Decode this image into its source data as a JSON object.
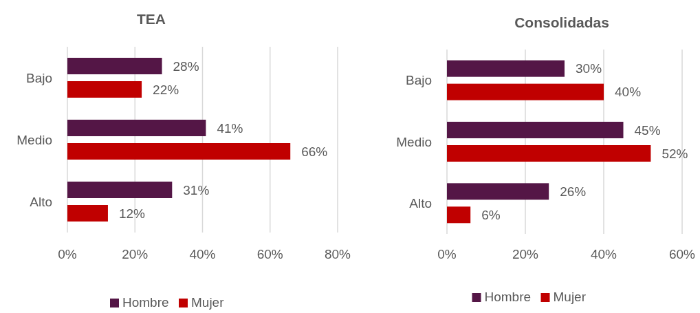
{
  "chart_data": [
    {
      "type": "bar",
      "orientation": "horizontal",
      "title": "TEA",
      "categories": [
        "Bajo",
        "Medio",
        "Alto"
      ],
      "series": [
        {
          "name": "Hombre",
          "color": "#541646",
          "values": [
            28,
            41,
            31
          ],
          "value_labels": [
            "28%",
            "41%",
            "31%"
          ]
        },
        {
          "name": "Mujer",
          "color": "#c00000",
          "values": [
            22,
            66,
            12
          ],
          "value_labels": [
            "22%",
            "66%",
            "12%"
          ]
        }
      ],
      "xlim": [
        0,
        80
      ],
      "xticks": [
        {
          "value": 0,
          "label": "0%"
        },
        {
          "value": 20,
          "label": "20%"
        },
        {
          "value": 40,
          "label": "40%"
        },
        {
          "value": 60,
          "label": "60%"
        },
        {
          "value": 80,
          "label": "80%"
        }
      ],
      "grid": "x",
      "legend": "bottom"
    },
    {
      "type": "bar",
      "orientation": "horizontal",
      "title": "Consolidadas",
      "categories": [
        "Bajo",
        "Medio",
        "Alto"
      ],
      "series": [
        {
          "name": "Hombre",
          "color": "#541646",
          "values": [
            30,
            45,
            26
          ],
          "value_labels": [
            "30%",
            "45%",
            "26%"
          ]
        },
        {
          "name": "Mujer",
          "color": "#c00000",
          "values": [
            40,
            52,
            6
          ],
          "value_labels": [
            "40%",
            "52%",
            "6%"
          ]
        }
      ],
      "xlim": [
        0,
        60
      ],
      "xticks": [
        {
          "value": 0,
          "label": "0%"
        },
        {
          "value": 20,
          "label": "20%"
        },
        {
          "value": 40,
          "label": "40%"
        },
        {
          "value": 60,
          "label": "60%"
        }
      ],
      "grid": "x",
      "legend": "bottom"
    }
  ]
}
